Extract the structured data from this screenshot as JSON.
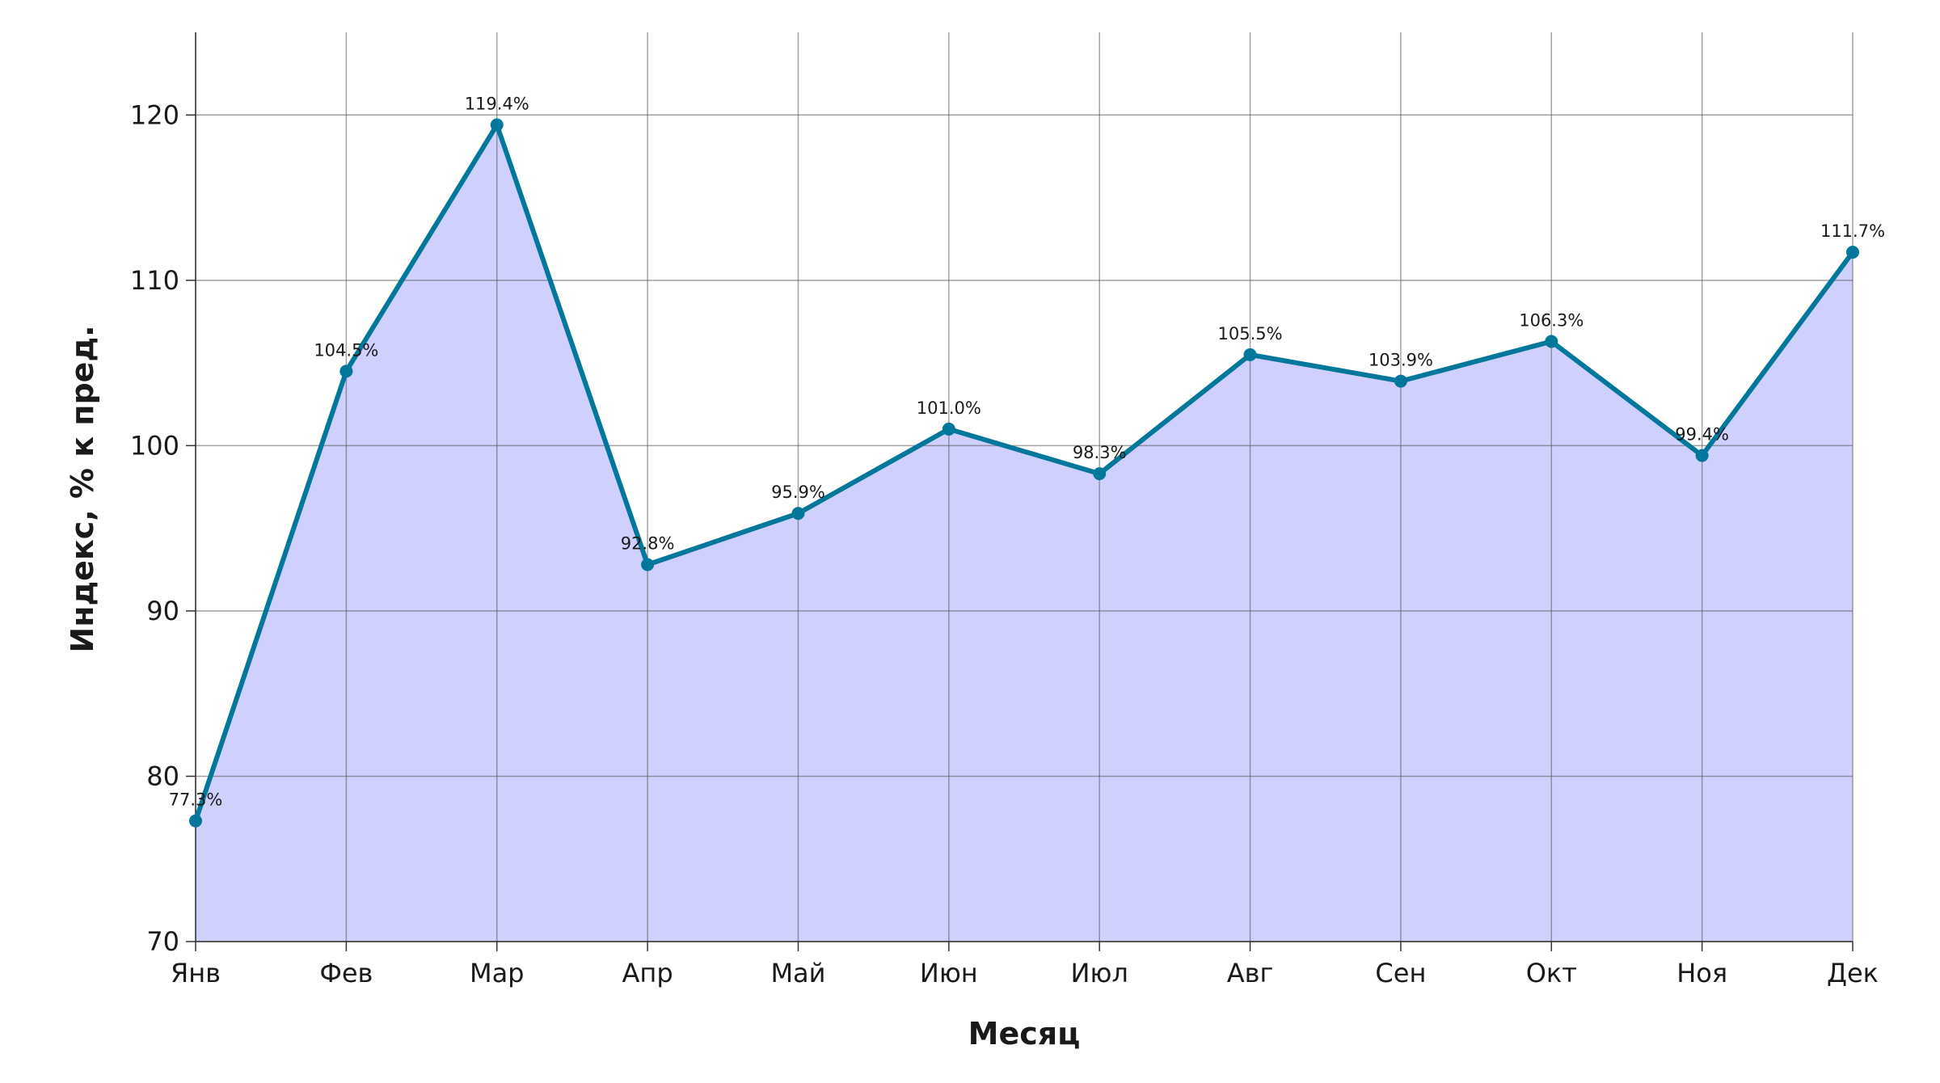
{
  "chart_data": {
    "type": "area",
    "categories": [
      "Янв",
      "Фев",
      "Мар",
      "Апр",
      "Май",
      "Июн",
      "Июл",
      "Авг",
      "Сен",
      "Окт",
      "Ноя",
      "Дек"
    ],
    "values": [
      77.3,
      104.5,
      119.4,
      92.8,
      95.9,
      101.0,
      98.3,
      105.5,
      103.9,
      106.3,
      99.4,
      111.7
    ],
    "data_labels": [
      "77.3%",
      "104.5%",
      "119.4%",
      "92.8%",
      "95.9%",
      "101.0%",
      "98.3%",
      "105.5%",
      "103.9%",
      "106.3%",
      "99.4%",
      "111.7%"
    ],
    "xlabel": "Месяц",
    "ylabel": "Индекс, % к пред.",
    "ylim": [
      70,
      125
    ],
    "yticks": [
      70,
      80,
      90,
      100,
      110,
      120
    ],
    "grid": true,
    "colors": {
      "line": "#00779b",
      "fill": "#d0d0ff",
      "marker": "#00779b"
    }
  }
}
